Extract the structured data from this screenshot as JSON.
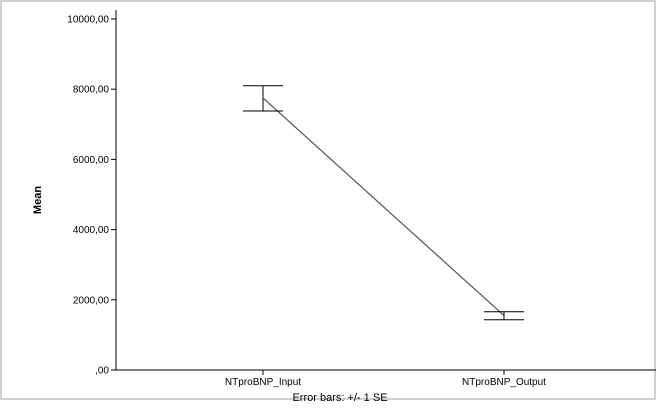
{
  "chart_data": {
    "type": "line",
    "ylabel": "Mean",
    "xlabel": "",
    "ylim": [
      0,
      10000
    ],
    "yticks": [
      {
        "value": 0,
        "label": ",00"
      },
      {
        "value": 2000,
        "label": "2000,00"
      },
      {
        "value": 4000,
        "label": "4000,00"
      },
      {
        "value": 6000,
        "label": "6000,00"
      },
      {
        "value": 8000,
        "label": "8000,00"
      },
      {
        "value": 10000,
        "label": "10000,00"
      }
    ],
    "categories": [
      "NTproBNP_Input",
      "NTproBNP_Output"
    ],
    "series": [
      {
        "values": [
          7750,
          1550
        ],
        "error_low": [
          7380,
          1430
        ],
        "error_high": [
          8100,
          1660
        ]
      }
    ],
    "grid": false,
    "footnote": "Error bars: +/- 1 SE"
  },
  "colors": {
    "line": "#555555",
    "axis": "#000000",
    "frame": "#a0a0a0"
  }
}
